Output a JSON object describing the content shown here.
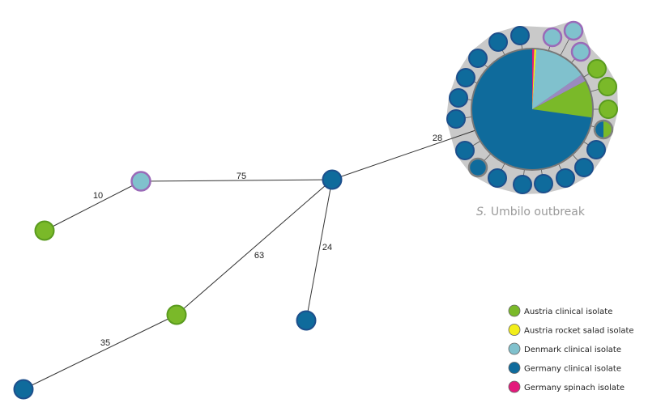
{
  "edges": [
    {
      "label": 75
    },
    {
      "label": 10
    },
    {
      "label": 63
    },
    {
      "label": 24
    },
    {
      "label": 35
    },
    {
      "label": 28
    }
  ],
  "cluster_label": {
    "species": "S.",
    "text": "Umbilo outbreak"
  },
  "legend": [
    {
      "label": "Austria clinical isolate",
      "color": "#7ab929"
    },
    {
      "label": "Austria rocket salad isolate",
      "color": "#f2ee1a"
    },
    {
      "label": "Denmark clinical isolate",
      "color": "#80c1cd"
    },
    {
      "label": "Germany clinical isolate",
      "color": "#0f6b9c"
    },
    {
      "label": "Germany spinach isolate",
      "color": "#e3197b"
    }
  ]
}
